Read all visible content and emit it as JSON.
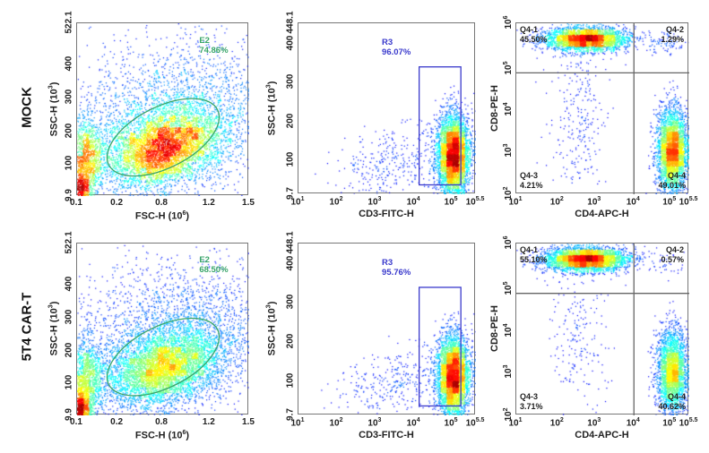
{
  "rows": [
    {
      "label": "MOCK"
    },
    {
      "label": "5T4 CAR-T"
    }
  ],
  "colors": {
    "e2_gate": "#3aa66a",
    "r3_gate": "#3a3acc",
    "quad_line": "#666666"
  },
  "chart_data": [
    {
      "type": "scatter",
      "row": "MOCK",
      "panel": "FSC vs SSC",
      "xlabel": "FSC-H (10^6)",
      "ylabel": "SSC-H (10^3)",
      "xticks": [
        "0.1",
        "0.2",
        "0.8",
        "1.2",
        "1.5"
      ],
      "yticks": [
        "9.9",
        "100",
        "200",
        "300",
        "400",
        "522.1"
      ],
      "xlim": [
        0.1,
        1.5
      ],
      "ylim": [
        9.9,
        522.1
      ],
      "gate": {
        "type": "ellipse",
        "name": "E2",
        "percent": "74.86%"
      }
    },
    {
      "type": "scatter",
      "row": "MOCK",
      "panel": "CD3 vs SSC",
      "xlabel": "CD3-FITC-H",
      "ylabel": "SSC-H (10^3)",
      "xticks": [
        "1",
        "2",
        "3",
        "4",
        "5",
        "5.5"
      ],
      "yticks": [
        "9.7",
        "100",
        "200",
        "300",
        "400",
        "448.1"
      ],
      "xlim": [
        "10^1",
        "10^5.5"
      ],
      "ylim": [
        9.7,
        448.1
      ],
      "gate": {
        "type": "rectangle",
        "name": "R3",
        "percent": "96.07%"
      }
    },
    {
      "type": "scatter",
      "row": "MOCK",
      "panel": "CD4 vs CD8",
      "xlabel": "CD4-APC-H",
      "ylabel": "CD8-PE-H",
      "xticks": [
        "1",
        "2",
        "3",
        "4",
        "5",
        "5.5"
      ],
      "yticks": [
        "2",
        "3",
        "4",
        "5",
        "6"
      ],
      "xlim": [
        "10^1",
        "10^5.5"
      ],
      "ylim": [
        "10^2",
        "10^6"
      ],
      "quadrants": [
        {
          "name": "Q4-1",
          "percent": "45.50%"
        },
        {
          "name": "Q4-2",
          "percent": "1.29%"
        },
        {
          "name": "Q4-3",
          "percent": "4.21%"
        },
        {
          "name": "Q4-4",
          "percent": "49.01%"
        }
      ]
    },
    {
      "type": "scatter",
      "row": "5T4 CAR-T",
      "panel": "FSC vs SSC",
      "xlabel": "FSC-H (10^6)",
      "ylabel": "SSC-H (10^3)",
      "xticks": [
        "0.1",
        "0.2",
        "0.8",
        "1.2",
        "1.5"
      ],
      "yticks": [
        "9.9",
        "100",
        "200",
        "300",
        "400",
        "522.1"
      ],
      "xlim": [
        0.1,
        1.5
      ],
      "ylim": [
        9.9,
        522.1
      ],
      "gate": {
        "type": "ellipse",
        "name": "E2",
        "percent": "68.50%"
      }
    },
    {
      "type": "scatter",
      "row": "5T4 CAR-T",
      "panel": "CD3 vs SSC",
      "xlabel": "CD3-FITC-H",
      "ylabel": "SSC-H (10^3)",
      "xticks": [
        "1",
        "2",
        "3",
        "4",
        "5",
        "5.5"
      ],
      "yticks": [
        "9.7",
        "100",
        "200",
        "300",
        "400",
        "448.1"
      ],
      "xlim": [
        "10^1",
        "10^5.5"
      ],
      "ylim": [
        9.7,
        448.1
      ],
      "gate": {
        "type": "rectangle",
        "name": "R3",
        "percent": "95.76%"
      }
    },
    {
      "type": "scatter",
      "row": "5T4 CAR-T",
      "panel": "CD4 vs CD8",
      "xlabel": "CD4-APC-H",
      "ylabel": "CD8-PE-H",
      "xticks": [
        "1",
        "2",
        "3",
        "4",
        "5",
        "5.5"
      ],
      "yticks": [
        "2",
        "3",
        "4",
        "5",
        "6"
      ],
      "xlim": [
        "10^1",
        "10^5.5"
      ],
      "ylim": [
        "10^2",
        "10^6"
      ],
      "quadrants": [
        {
          "name": "Q4-1",
          "percent": "55.10%"
        },
        {
          "name": "Q4-2",
          "percent": "0.57%"
        },
        {
          "name": "Q4-3",
          "percent": "3.71%"
        },
        {
          "name": "Q4-4",
          "percent": "40.62%"
        }
      ]
    }
  ]
}
